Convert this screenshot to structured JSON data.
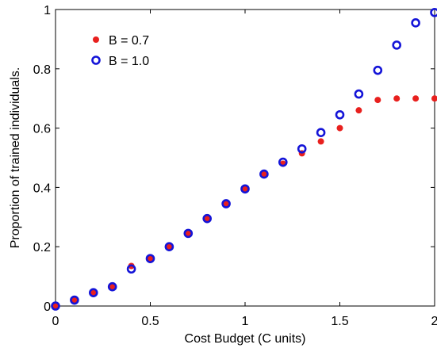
{
  "chart_data": {
    "type": "scatter",
    "title": "",
    "xlabel": "Cost Budget (C units)",
    "ylabel": "Proportion of trained individuals.",
    "xlim": [
      0,
      2
    ],
    "ylim": [
      0,
      1
    ],
    "x_ticks": [
      "0",
      "0.5",
      "1",
      "1.5",
      "2"
    ],
    "y_ticks": [
      "0",
      "0.2",
      "0.4",
      "0.6",
      "0.8",
      "1"
    ],
    "grid": false,
    "legend_position": "top-left",
    "series": [
      {
        "name": "B = 0.7",
        "marker": "filled-dot",
        "color": "#e8201e",
        "points": [
          [
            0,
            0
          ],
          [
            0.1,
            0.02
          ],
          [
            0.2,
            0.045
          ],
          [
            0.3,
            0.065
          ],
          [
            0.4,
            0.135
          ],
          [
            0.5,
            0.16
          ],
          [
            0.6,
            0.2
          ],
          [
            0.7,
            0.245
          ],
          [
            0.8,
            0.295
          ],
          [
            0.9,
            0.345
          ],
          [
            1.0,
            0.395
          ],
          [
            1.1,
            0.445
          ],
          [
            1.2,
            0.48
          ],
          [
            1.3,
            0.515
          ],
          [
            1.4,
            0.555
          ],
          [
            1.5,
            0.6
          ],
          [
            1.6,
            0.66
          ],
          [
            1.7,
            0.695
          ],
          [
            1.8,
            0.7
          ],
          [
            1.9,
            0.7
          ],
          [
            2.0,
            0.7
          ]
        ]
      },
      {
        "name": "B = 1.0",
        "marker": "open-circle",
        "color": "#1414d8",
        "points": [
          [
            0,
            0
          ],
          [
            0.1,
            0.02
          ],
          [
            0.2,
            0.045
          ],
          [
            0.3,
            0.065
          ],
          [
            0.4,
            0.125
          ],
          [
            0.5,
            0.16
          ],
          [
            0.6,
            0.2
          ],
          [
            0.7,
            0.245
          ],
          [
            0.8,
            0.295
          ],
          [
            0.9,
            0.345
          ],
          [
            1.0,
            0.395
          ],
          [
            1.1,
            0.445
          ],
          [
            1.2,
            0.485
          ],
          [
            1.3,
            0.53
          ],
          [
            1.4,
            0.585
          ],
          [
            1.5,
            0.645
          ],
          [
            1.6,
            0.715
          ],
          [
            1.7,
            0.795
          ],
          [
            1.8,
            0.88
          ],
          [
            1.9,
            0.955
          ],
          [
            2.0,
            0.99
          ]
        ]
      }
    ]
  }
}
